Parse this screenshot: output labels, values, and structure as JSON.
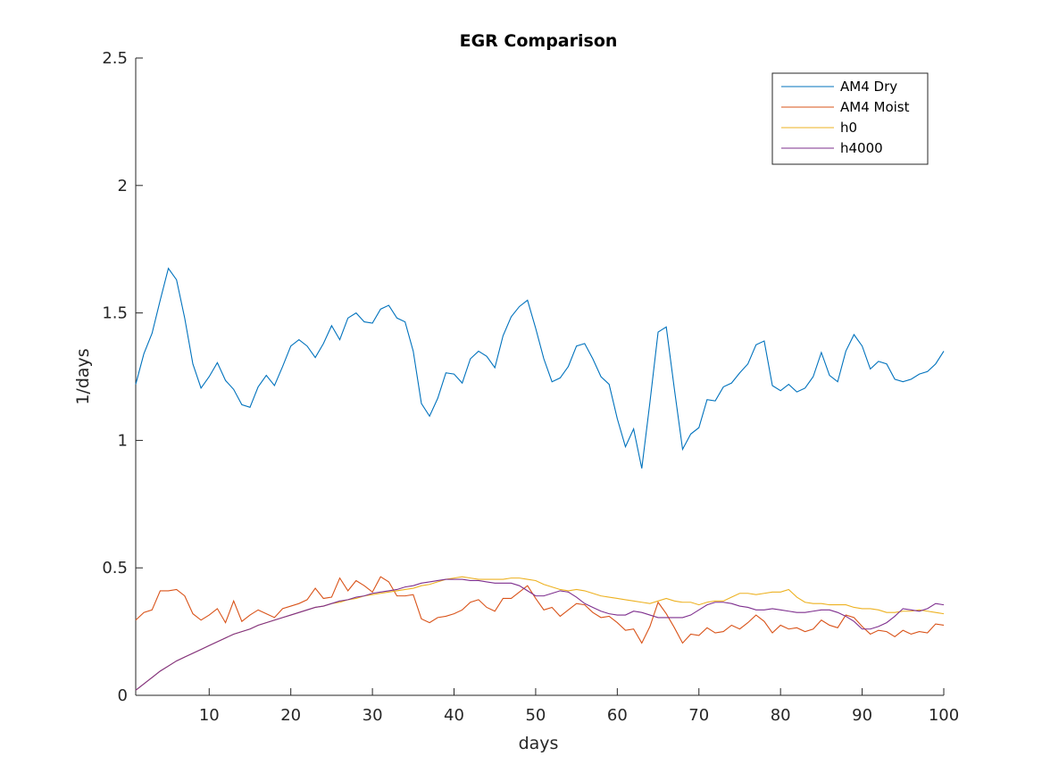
{
  "chart_data": {
    "type": "line",
    "title": "EGR Comparison",
    "xlabel": "days",
    "ylabel": "1/days",
    "xlim": [
      1,
      100
    ],
    "ylim": [
      0,
      2.5
    ],
    "xticks": [
      10,
      20,
      30,
      40,
      50,
      60,
      70,
      80,
      90,
      100
    ],
    "yticks": [
      0,
      0.5,
      1,
      1.5,
      2,
      2.5
    ],
    "ytick_labels": [
      "0",
      "0.5",
      "1",
      "1.5",
      "2",
      "2.5"
    ],
    "grid": false,
    "legend_position": "top-right",
    "x": [
      1,
      2,
      3,
      4,
      5,
      6,
      7,
      8,
      9,
      10,
      11,
      12,
      13,
      14,
      15,
      16,
      17,
      18,
      19,
      20,
      21,
      22,
      23,
      24,
      25,
      26,
      27,
      28,
      29,
      30,
      31,
      32,
      33,
      34,
      35,
      36,
      37,
      38,
      39,
      40,
      41,
      42,
      43,
      44,
      45,
      46,
      47,
      48,
      49,
      50,
      51,
      52,
      53,
      54,
      55,
      56,
      57,
      58,
      59,
      60,
      61,
      62,
      63,
      64,
      65,
      66,
      67,
      68,
      69,
      70,
      71,
      72,
      73,
      74,
      75,
      76,
      77,
      78,
      79,
      80,
      81,
      82,
      83,
      84,
      85,
      86,
      87,
      88,
      89,
      90,
      91,
      92,
      93,
      94,
      95,
      96,
      97,
      98,
      99,
      100
    ],
    "series": [
      {
        "name": "AM4 Dry",
        "color": "#0072BD",
        "values": [
          1.22,
          1.34,
          1.42,
          1.55,
          1.675,
          1.63,
          1.48,
          1.3,
          1.205,
          1.25,
          1.305,
          1.235,
          1.2,
          1.14,
          1.13,
          1.21,
          1.255,
          1.215,
          1.29,
          1.37,
          1.395,
          1.37,
          1.325,
          1.38,
          1.45,
          1.395,
          1.48,
          1.5,
          1.465,
          1.46,
          1.515,
          1.53,
          1.48,
          1.465,
          1.35,
          1.145,
          1.095,
          1.165,
          1.265,
          1.26,
          1.225,
          1.32,
          1.35,
          1.33,
          1.285,
          1.41,
          1.485,
          1.525,
          1.55,
          1.44,
          1.32,
          1.23,
          1.245,
          1.29,
          1.37,
          1.38,
          1.32,
          1.25,
          1.22,
          1.085,
          0.975,
          1.045,
          0.89,
          1.15,
          1.425,
          1.445,
          1.2,
          0.965,
          1.025,
          1.05,
          1.16,
          1.155,
          1.21,
          1.225,
          1.265,
          1.3,
          1.375,
          1.39,
          1.215,
          1.195,
          1.22,
          1.19,
          1.205,
          1.25,
          1.345,
          1.255,
          1.23,
          1.35,
          1.415,
          1.37,
          1.28,
          1.31,
          1.3,
          1.24,
          1.23,
          1.24,
          1.26,
          1.27,
          1.3,
          1.35
        ]
      },
      {
        "name": "AM4 Moist",
        "color": "#D95319",
        "values": [
          0.295,
          0.325,
          0.335,
          0.41,
          0.41,
          0.415,
          0.39,
          0.32,
          0.295,
          0.315,
          0.34,
          0.285,
          0.37,
          0.29,
          0.315,
          0.335,
          0.32,
          0.305,
          0.34,
          0.35,
          0.36,
          0.375,
          0.42,
          0.38,
          0.385,
          0.46,
          0.41,
          0.45,
          0.43,
          0.405,
          0.465,
          0.445,
          0.39,
          0.39,
          0.395,
          0.3,
          0.285,
          0.305,
          0.31,
          0.32,
          0.335,
          0.365,
          0.375,
          0.345,
          0.33,
          0.38,
          0.38,
          0.405,
          0.43,
          0.38,
          0.335,
          0.345,
          0.31,
          0.335,
          0.36,
          0.355,
          0.325,
          0.305,
          0.31,
          0.285,
          0.255,
          0.26,
          0.205,
          0.27,
          0.365,
          0.32,
          0.265,
          0.205,
          0.24,
          0.235,
          0.265,
          0.245,
          0.25,
          0.275,
          0.26,
          0.285,
          0.315,
          0.29,
          0.245,
          0.275,
          0.26,
          0.265,
          0.25,
          0.26,
          0.295,
          0.275,
          0.265,
          0.315,
          0.305,
          0.27,
          0.24,
          0.255,
          0.25,
          0.23,
          0.255,
          0.24,
          0.25,
          0.245,
          0.28,
          0.275
        ]
      },
      {
        "name": "h0",
        "color": "#EDB120",
        "values": [
          0.02,
          0.045,
          0.07,
          0.095,
          0.115,
          0.135,
          0.15,
          0.165,
          0.18,
          0.195,
          0.21,
          0.225,
          0.24,
          0.25,
          0.26,
          0.275,
          0.285,
          0.295,
          0.305,
          0.315,
          0.325,
          0.335,
          0.345,
          0.35,
          0.36,
          0.365,
          0.375,
          0.38,
          0.39,
          0.395,
          0.4,
          0.405,
          0.41,
          0.415,
          0.42,
          0.43,
          0.435,
          0.445,
          0.455,
          0.46,
          0.465,
          0.46,
          0.455,
          0.455,
          0.455,
          0.455,
          0.46,
          0.46,
          0.455,
          0.45,
          0.435,
          0.425,
          0.415,
          0.41,
          0.415,
          0.41,
          0.4,
          0.39,
          0.385,
          0.38,
          0.375,
          0.37,
          0.365,
          0.36,
          0.37,
          0.38,
          0.37,
          0.365,
          0.365,
          0.355,
          0.365,
          0.37,
          0.37,
          0.385,
          0.4,
          0.4,
          0.395,
          0.4,
          0.405,
          0.405,
          0.415,
          0.385,
          0.365,
          0.36,
          0.36,
          0.355,
          0.355,
          0.355,
          0.345,
          0.34,
          0.34,
          0.335,
          0.325,
          0.325,
          0.33,
          0.33,
          0.335,
          0.33,
          0.325,
          0.32
        ]
      },
      {
        "name": "h4000",
        "color": "#7E2F8E",
        "values": [
          0.02,
          0.045,
          0.07,
          0.095,
          0.115,
          0.135,
          0.15,
          0.165,
          0.18,
          0.195,
          0.21,
          0.225,
          0.24,
          0.25,
          0.26,
          0.275,
          0.285,
          0.295,
          0.305,
          0.315,
          0.325,
          0.335,
          0.345,
          0.35,
          0.36,
          0.37,
          0.375,
          0.385,
          0.39,
          0.4,
          0.405,
          0.41,
          0.415,
          0.425,
          0.43,
          0.44,
          0.445,
          0.45,
          0.455,
          0.455,
          0.455,
          0.45,
          0.45,
          0.445,
          0.44,
          0.44,
          0.44,
          0.43,
          0.41,
          0.39,
          0.39,
          0.4,
          0.41,
          0.405,
          0.385,
          0.36,
          0.345,
          0.33,
          0.32,
          0.315,
          0.315,
          0.33,
          0.325,
          0.315,
          0.305,
          0.305,
          0.305,
          0.305,
          0.315,
          0.335,
          0.355,
          0.365,
          0.365,
          0.36,
          0.35,
          0.345,
          0.335,
          0.335,
          0.34,
          0.335,
          0.33,
          0.325,
          0.325,
          0.33,
          0.335,
          0.335,
          0.325,
          0.31,
          0.29,
          0.26,
          0.26,
          0.27,
          0.285,
          0.31,
          0.34,
          0.335,
          0.33,
          0.34,
          0.36,
          0.355
        ]
      }
    ]
  }
}
